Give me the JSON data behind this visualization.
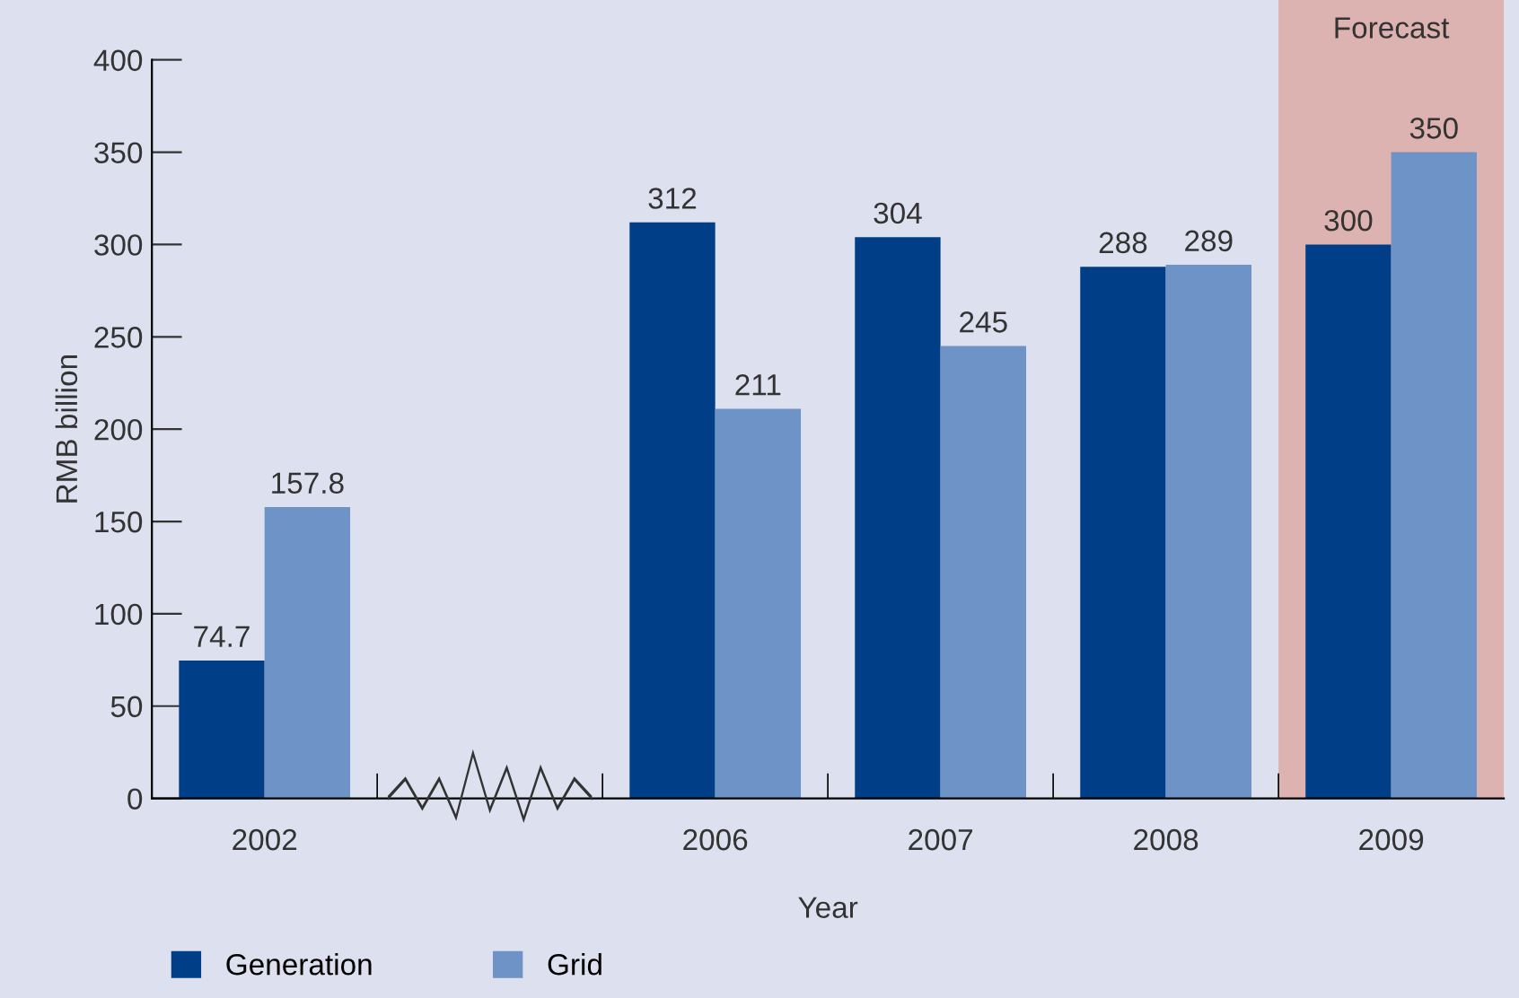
{
  "chart_data": {
    "type": "bar",
    "xlabel": "Year",
    "ylabel": "RMB billion",
    "categories": [
      "2002",
      null,
      "2006",
      "2007",
      "2008",
      "2009"
    ],
    "series": [
      {
        "name": "Generation",
        "color": "#003f87",
        "values": [
          74.7,
          null,
          312,
          304,
          288,
          300
        ]
      },
      {
        "name": "Grid",
        "color": "#6e93c6",
        "values": [
          157.8,
          null,
          211,
          245,
          289,
          350
        ]
      }
    ],
    "ylim": [
      0,
      400
    ],
    "yticks": [
      0,
      50,
      100,
      150,
      200,
      250,
      300,
      350,
      400
    ],
    "bands": [
      {
        "axis": "x",
        "from": "2009",
        "to": "2009",
        "label": "Forecast",
        "color": "#dcaaa6"
      }
    ],
    "data_labels": true,
    "grid": false,
    "legend": "bottom left"
  }
}
